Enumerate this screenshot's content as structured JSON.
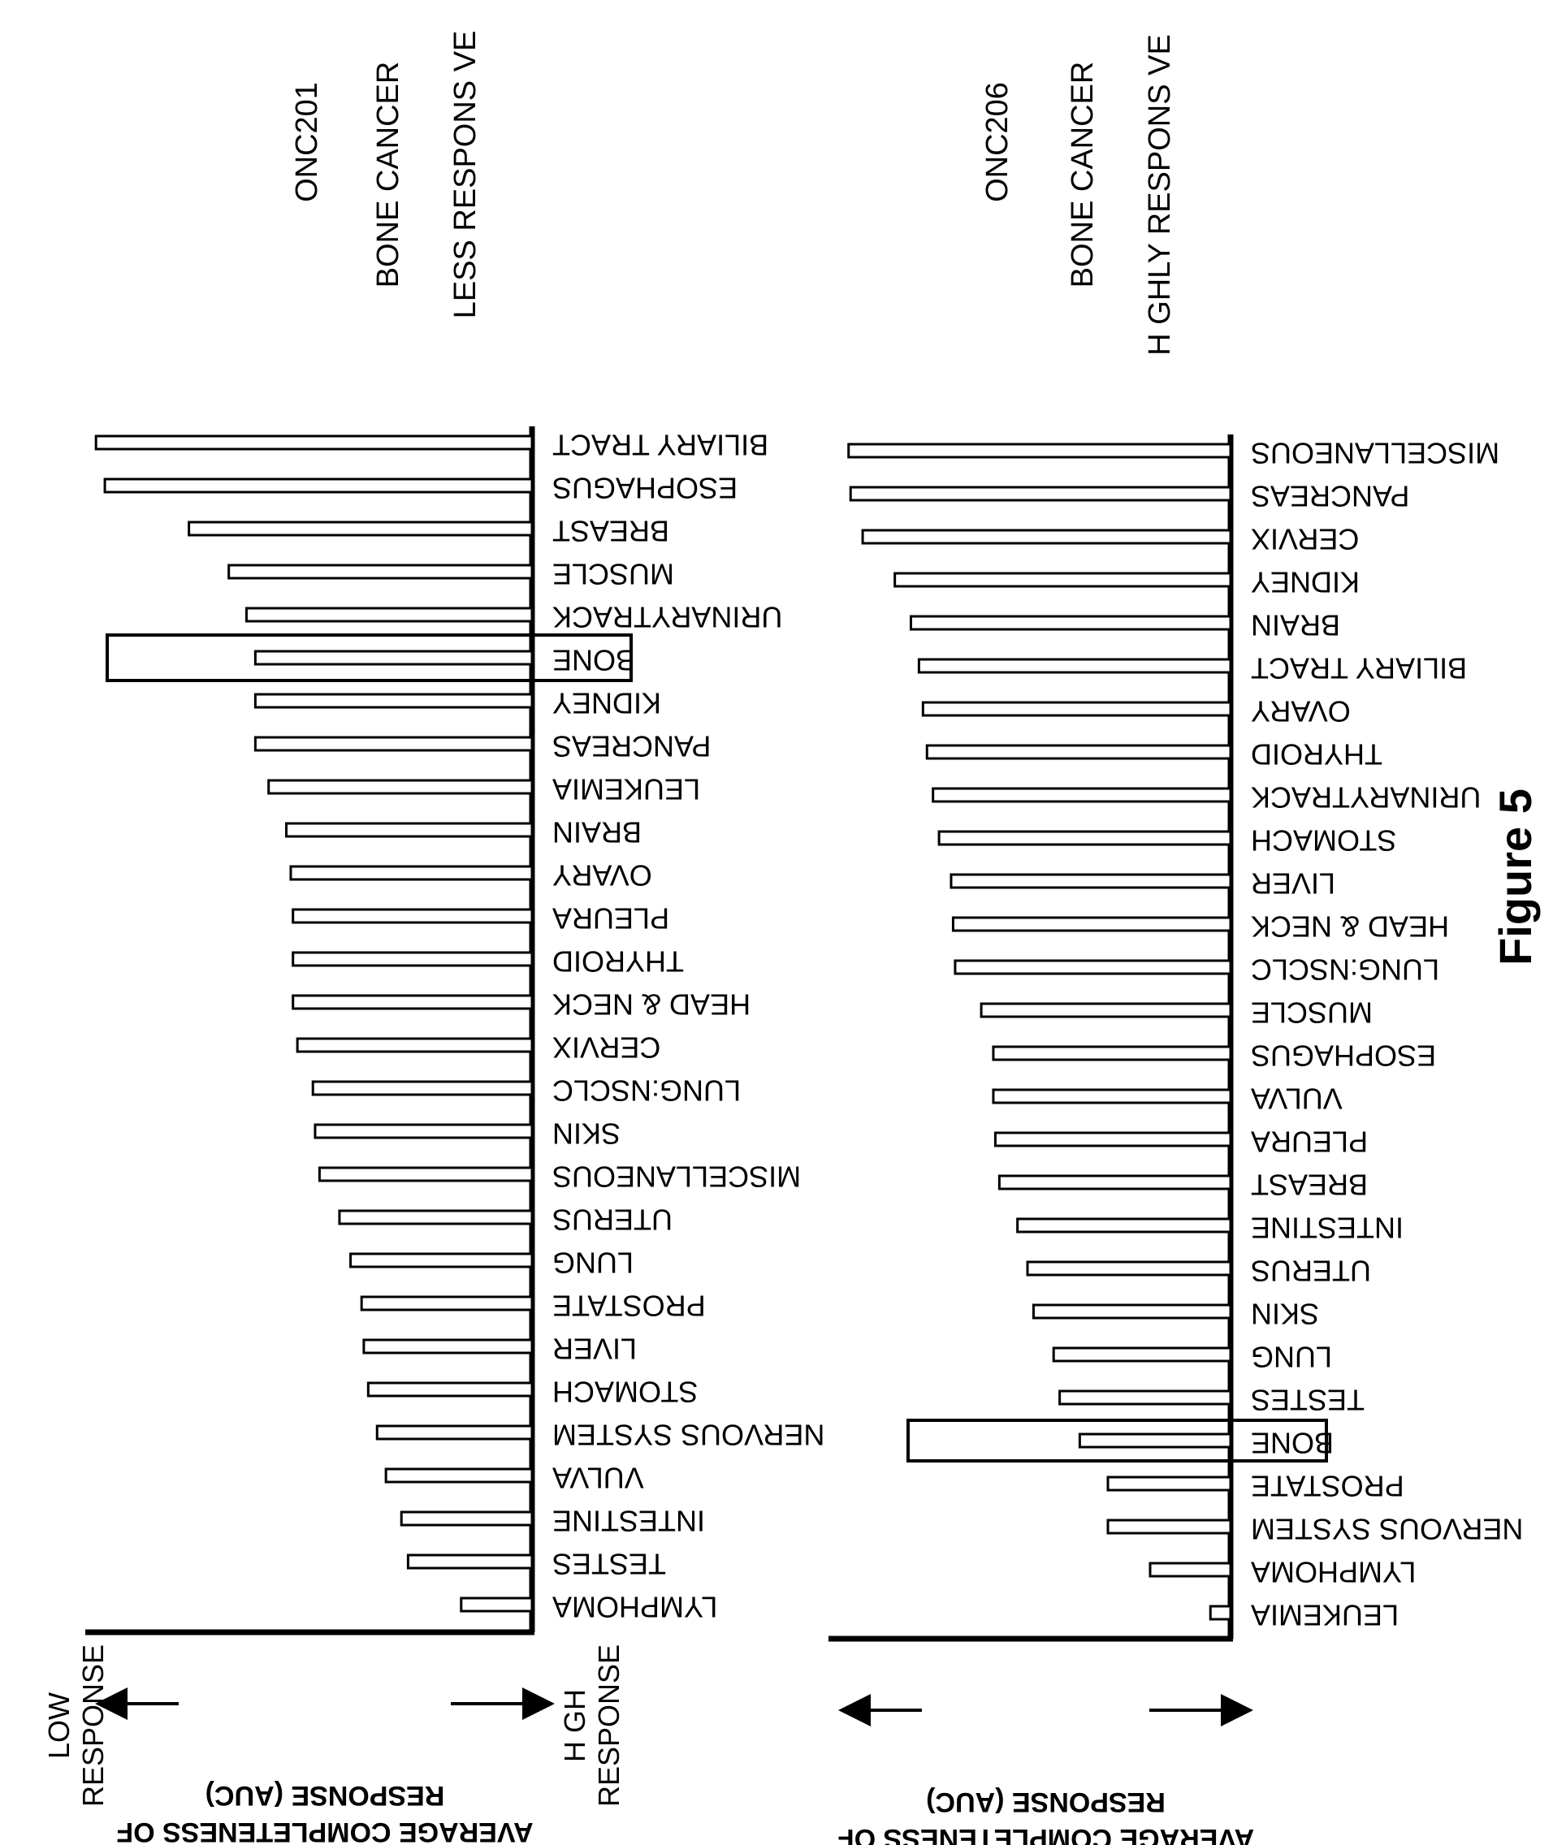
{
  "figure_label": "Figure 5",
  "chart_data": [
    {
      "type": "bar",
      "orientation": "horizontal",
      "annotations": [
        "ONC201",
        "BONE CANCER",
        "LESS RESPONS VE"
      ],
      "xlabel": "AVERAGE COMPLETENESS OF RESPONSE (AUC)",
      "low_label": "LOW RESPONSE",
      "high_label": "H GH RESPONSE",
      "xlim": [
        0,
        1
      ],
      "highlighted": "BONE",
      "categories": [
        "BILIARY TRACT",
        "ESOPHAGUS",
        "BREAST",
        "MUSCLE",
        "URINARYTRACK",
        "BONE",
        "KIDNEY",
        "PANCREAS",
        "LEUKEMIA",
        "BRAIN",
        "OVARY",
        "PLEURA",
        "THYROID",
        "HEAD & NECK",
        "CERVIX",
        "LUNG:NSCLC",
        "SKIN",
        "MISCELLANEOUS",
        "UTERUS",
        "LUNG",
        "PROSTATE",
        "LIVER",
        "STOMACH",
        "NERVOUS SYSTEM",
        "VULVA",
        "INTESTINE",
        "TESTES",
        "LYMPHOMA"
      ],
      "values": [
        0.985,
        0.965,
        0.775,
        0.685,
        0.645,
        0.625,
        0.625,
        0.625,
        0.595,
        0.555,
        0.545,
        0.54,
        0.54,
        0.54,
        0.53,
        0.495,
        0.49,
        0.48,
        0.435,
        0.41,
        0.385,
        0.38,
        0.37,
        0.35,
        0.33,
        0.295,
        0.28,
        0.16
      ]
    },
    {
      "type": "bar",
      "orientation": "horizontal",
      "annotations": [
        "ONC206",
        "BONE CANCER",
        "H GHLY RESPONS VE"
      ],
      "xlabel": "AVERAGE COMPLETENESS OF RESPONSE (AUC)",
      "xlim": [
        0,
        1
      ],
      "highlighted": "BONE",
      "categories": [
        "MISCELLANEOUS",
        "PANCREAS",
        "CERVIX",
        "KIDNEY",
        "BRAIN",
        "BILIARY TRACT",
        "OVARY",
        "THYROID",
        "URINARYTRACK",
        "STOMACH",
        "LIVER",
        "HEAD & NECK",
        "LUNG:NSCLC",
        "MUSCLE",
        "ESOPHAGUS",
        "VULVA",
        "PLEURA",
        "BREAST",
        "INTESTINE",
        "UTERUS",
        "SKIN",
        "LUNG",
        "TESTES",
        "BONE",
        "PROSTATE",
        "NERVOUS SYSTEM",
        "LYMPHOMA",
        "LEUKEMIA"
      ],
      "values": [
        0.95,
        0.945,
        0.915,
        0.835,
        0.795,
        0.775,
        0.765,
        0.755,
        0.74,
        0.725,
        0.695,
        0.69,
        0.685,
        0.62,
        0.59,
        0.59,
        0.585,
        0.575,
        0.53,
        0.505,
        0.49,
        0.44,
        0.425,
        0.375,
        0.305,
        0.305,
        0.2,
        0.05
      ]
    }
  ]
}
